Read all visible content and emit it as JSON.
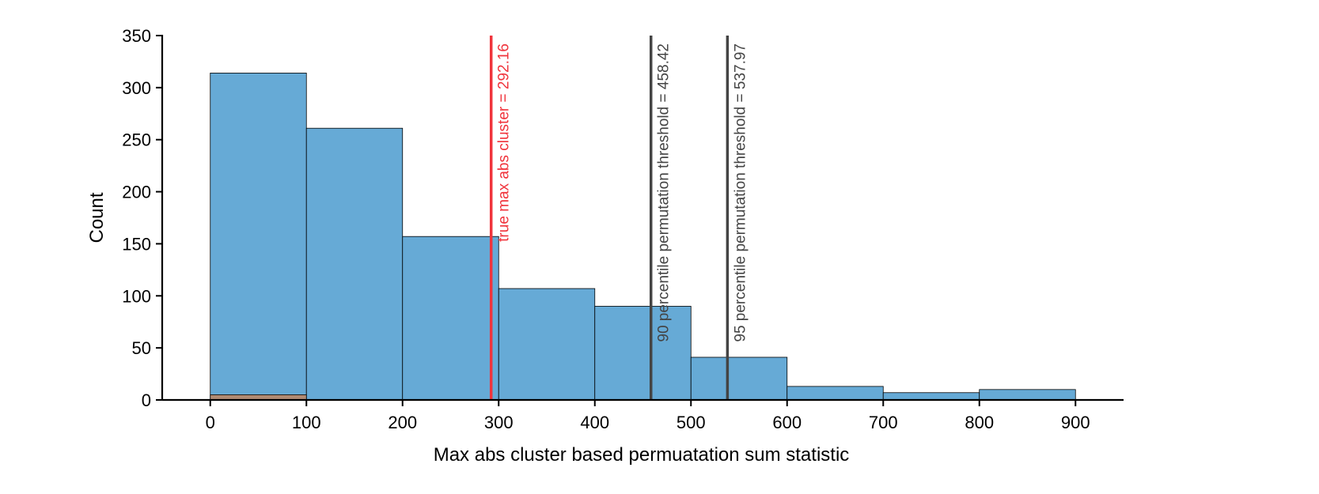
{
  "chart_data": {
    "type": "bar",
    "title": "",
    "xlabel": "Max abs cluster based permuatation sum statistic",
    "ylabel": "Count",
    "xlim": [
      -50,
      950
    ],
    "ylim": [
      0,
      350
    ],
    "xticks": [
      0,
      100,
      200,
      300,
      400,
      500,
      600,
      700,
      800,
      900
    ],
    "yticks": [
      0,
      50,
      100,
      150,
      200,
      250,
      300,
      350
    ],
    "grid": false,
    "series": [
      {
        "color": "#66aad6",
        "bins": [
          {
            "start": 0,
            "end": 100,
            "count": 314
          },
          {
            "start": 100,
            "end": 200,
            "count": 261
          },
          {
            "start": 200,
            "end": 300,
            "count": 157
          },
          {
            "start": 300,
            "end": 400,
            "count": 107
          },
          {
            "start": 400,
            "end": 500,
            "count": 90
          },
          {
            "start": 500,
            "end": 600,
            "count": 41
          },
          {
            "start": 600,
            "end": 700,
            "count": 13
          },
          {
            "start": 700,
            "end": 800,
            "count": 7
          },
          {
            "start": 800,
            "end": 900,
            "count": 10
          }
        ]
      },
      {
        "color": "#b08a72",
        "bins": [
          {
            "start": 0,
            "end": 100,
            "count": 5
          }
        ]
      }
    ],
    "vlines": [
      {
        "x": 292.16,
        "label": "true max abs cluster = 292.16",
        "color": "#f0343c"
      },
      {
        "x": 458.42,
        "label": "90 percentile permutation threshold = 458.42",
        "color": "#444444"
      },
      {
        "x": 537.97,
        "label": "95 percentile permutation threshold = 537.97",
        "color": "#444444"
      }
    ]
  }
}
